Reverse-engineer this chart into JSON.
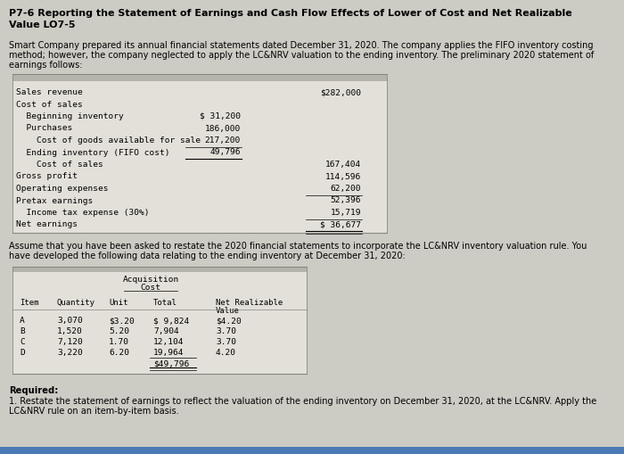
{
  "title_line1": "P7-6 Reporting the Statement of Earnings and Cash Flow Effects of Lower of Cost and Net Realizable",
  "title_line2": "Value LO7-5",
  "intro_line1": "Smart Company prepared its annual financial statements dated December 31, 2020. The company applies the FIFO inventory costing",
  "intro_line2": "method; however, the company neglected to apply the LC&NRV valuation to the ending inventory. The preliminary 2020 statement of",
  "intro_line3": "earnings follows:",
  "is_rows": [
    {
      "label": "Sales revenue",
      "col1": "",
      "col2": "$282,000",
      "indent": 0
    },
    {
      "label": "Cost of sales",
      "col1": "",
      "col2": "",
      "indent": 0
    },
    {
      "label": "  Beginning inventory",
      "col1": "$ 31,200",
      "col2": "",
      "indent": 0
    },
    {
      "label": "  Purchases",
      "col1": "186,000",
      "col2": "",
      "indent": 0
    },
    {
      "label": "    Cost of goods available for sale",
      "col1": "217,200",
      "col2": "",
      "indent": 0
    },
    {
      "label": "  Ending inventory (FIFO cost)",
      "col1": "49,796",
      "col2": "",
      "indent": 0
    },
    {
      "label": "    Cost of sales",
      "col1": "",
      "col2": "167,404",
      "indent": 0
    },
    {
      "label": "Gross profit",
      "col1": "",
      "col2": "114,596",
      "indent": 0
    },
    {
      "label": "Operating expenses",
      "col1": "",
      "col2": "62,200",
      "indent": 0
    },
    {
      "label": "Pretax earnings",
      "col1": "",
      "col2": "52,396",
      "indent": 0
    },
    {
      "label": "  Income tax expense (30%)",
      "col1": "",
      "col2": "15,719",
      "indent": 0
    },
    {
      "label": "Net earnings",
      "col1": "",
      "col2": "$ 36,677",
      "indent": 0
    }
  ],
  "mid_line1": "Assume that you have been asked to restate the 2020 financial statements to incorporate the LC&NRV inventory valuation rule. You",
  "mid_line2": "have developed the following data relating to the ending inventory at December 31, 2020:",
  "inv_items": [
    [
      "A",
      "3,070",
      "$3.20",
      "$ 9,824",
      "$4.20"
    ],
    [
      "B",
      "1,520",
      "5.20",
      "7,904",
      "3.70"
    ],
    [
      "C",
      "7,120",
      "1.70",
      "12,104",
      "3.70"
    ],
    [
      "D",
      "3,220",
      "6.20",
      "19,964",
      "4.20"
    ]
  ],
  "inv_total": "$49,796",
  "req_line1": "Required:",
  "req_line2": "1. Restate the statement of earnings to reflect the valuation of the ending inventory on December 31, 2020, at the LC&NRV. Apply the",
  "req_line3": "LC&NRV rule on an item-by-item basis.",
  "bg_color": "#cccbc4",
  "table_bg": "#e2e0d8",
  "header_bg": "#b5b3ac",
  "blue_bar": "#4a7ab5"
}
